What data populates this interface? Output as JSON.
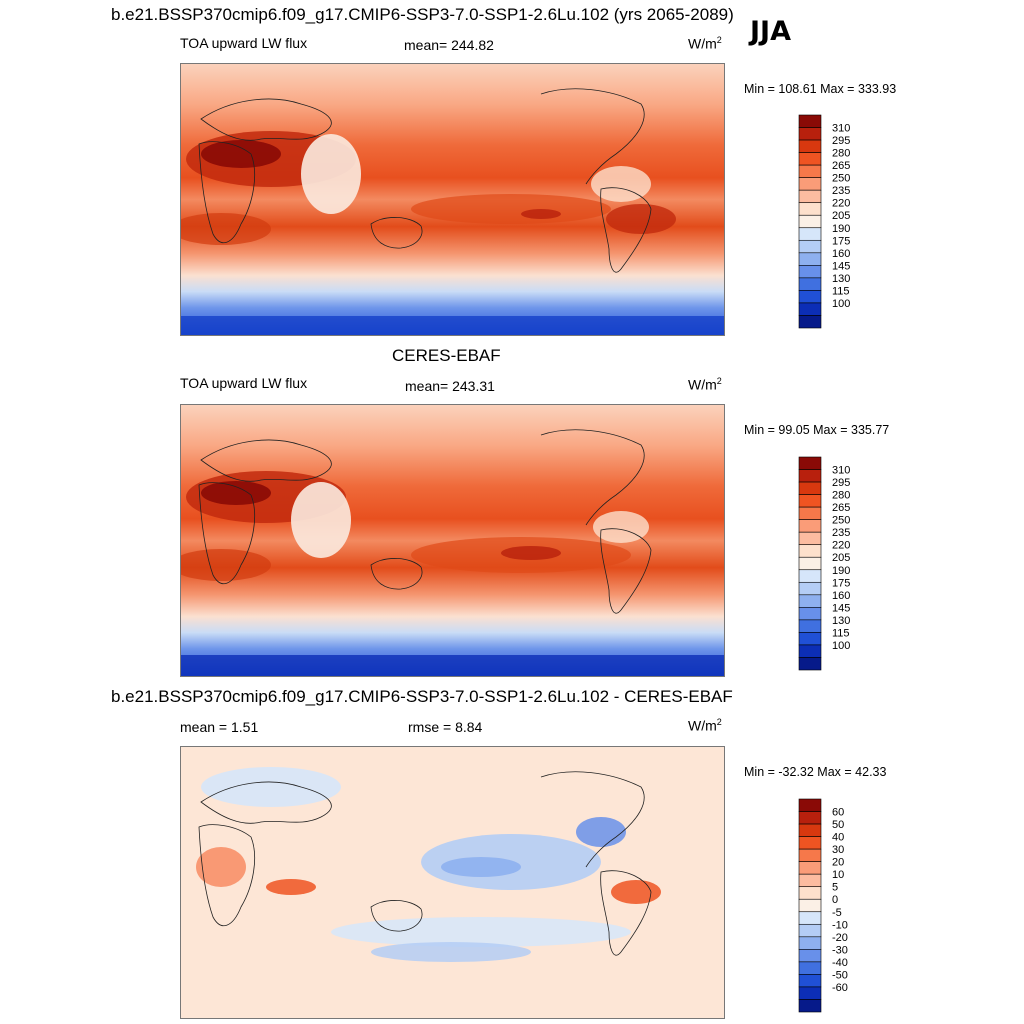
{
  "header": {
    "case_title": "b.e21.BSSP370cmip6.f09_g17.CMIP6-SSP3-7.0-SSP1-2.6Lu.102 (yrs 2065-2089)",
    "season": "JJA"
  },
  "panels": [
    {
      "id": "model",
      "title": "",
      "variable": "TOA upward LW flux",
      "mean_label": "mean= 244.82",
      "units_base": "W/m",
      "units_sup": "2",
      "minmax": "Min = 108.61 Max = 333.93"
    },
    {
      "id": "obs",
      "title": "CERES-EBAF",
      "variable": "TOA upward LW flux",
      "mean_label": "mean= 243.31",
      "units_base": "W/m",
      "units_sup": "2",
      "minmax": "Min =  99.05 Max = 335.77"
    },
    {
      "id": "diff",
      "title": "b.e21.BSSP370cmip6.f09_g17.CMIP6-SSP3-7.0-SSP1-2.6Lu.102 - CERES-EBAF",
      "variable": "",
      "mean_label": "mean =   1.51",
      "rmse_label": "rmse =   8.84",
      "units_base": "W/m",
      "units_sup": "2",
      "minmax": "Min = -32.32 Max =  42.33"
    }
  ],
  "chart_data": [
    {
      "type": "heatmap",
      "title": "TOA upward LW flux",
      "projection": "cylindrical equidistant, global",
      "units": "W/m2",
      "mean": 244.82,
      "min": 108.61,
      "max": 333.93,
      "colorbar_levels": [
        310,
        295,
        280,
        265,
        250,
        235,
        220,
        205,
        190,
        175,
        160,
        145,
        130,
        115,
        100
      ],
      "colorbar_colors": [
        "#8a0a06",
        "#b8200d",
        "#d8380f",
        "#ef5422",
        "#f6784a",
        "#fa9c78",
        "#fcbca0",
        "#fde0cc",
        "#fbf0e6",
        "#d6e6fa",
        "#b4cdf5",
        "#8eb0ef",
        "#6890ea",
        "#4070e0",
        "#2050d6",
        "#0c2eb6",
        "#061a8a"
      ]
    },
    {
      "type": "heatmap",
      "title": "CERES-EBAF",
      "projection": "cylindrical equidistant, global",
      "units": "W/m2",
      "mean": 243.31,
      "min": 99.05,
      "max": 335.77,
      "colorbar_levels": [
        310,
        295,
        280,
        265,
        250,
        235,
        220,
        205,
        190,
        175,
        160,
        145,
        130,
        115,
        100
      ],
      "colorbar_colors": [
        "#8a0a06",
        "#b8200d",
        "#d8380f",
        "#ef5422",
        "#f6784a",
        "#fa9c78",
        "#fcbca0",
        "#fde0cc",
        "#fbf0e6",
        "#d6e6fa",
        "#b4cdf5",
        "#8eb0ef",
        "#6890ea",
        "#4070e0",
        "#2050d6",
        "#0c2eb6",
        "#061a8a"
      ]
    },
    {
      "type": "heatmap",
      "title": "b.e21.BSSP370cmip6.f09_g17.CMIP6-SSP3-7.0-SSP1-2.6Lu.102 - CERES-EBAF",
      "projection": "cylindrical equidistant, global",
      "units": "W/m2",
      "mean": 1.51,
      "rmse": 8.84,
      "min": -32.32,
      "max": 42.33,
      "colorbar_levels": [
        60,
        50,
        40,
        30,
        20,
        10,
        5,
        0,
        -5,
        -10,
        -20,
        -30,
        -40,
        -50,
        -60
      ],
      "colorbar_colors": [
        "#8a0a06",
        "#b8200d",
        "#d8380f",
        "#ef5422",
        "#f6784a",
        "#fa9c78",
        "#fcbca0",
        "#fde0cc",
        "#fbf0e6",
        "#d6e6fa",
        "#b4cdf5",
        "#8eb0ef",
        "#6890ea",
        "#4070e0",
        "#2050d6",
        "#0c2eb6",
        "#061a8a"
      ]
    }
  ]
}
